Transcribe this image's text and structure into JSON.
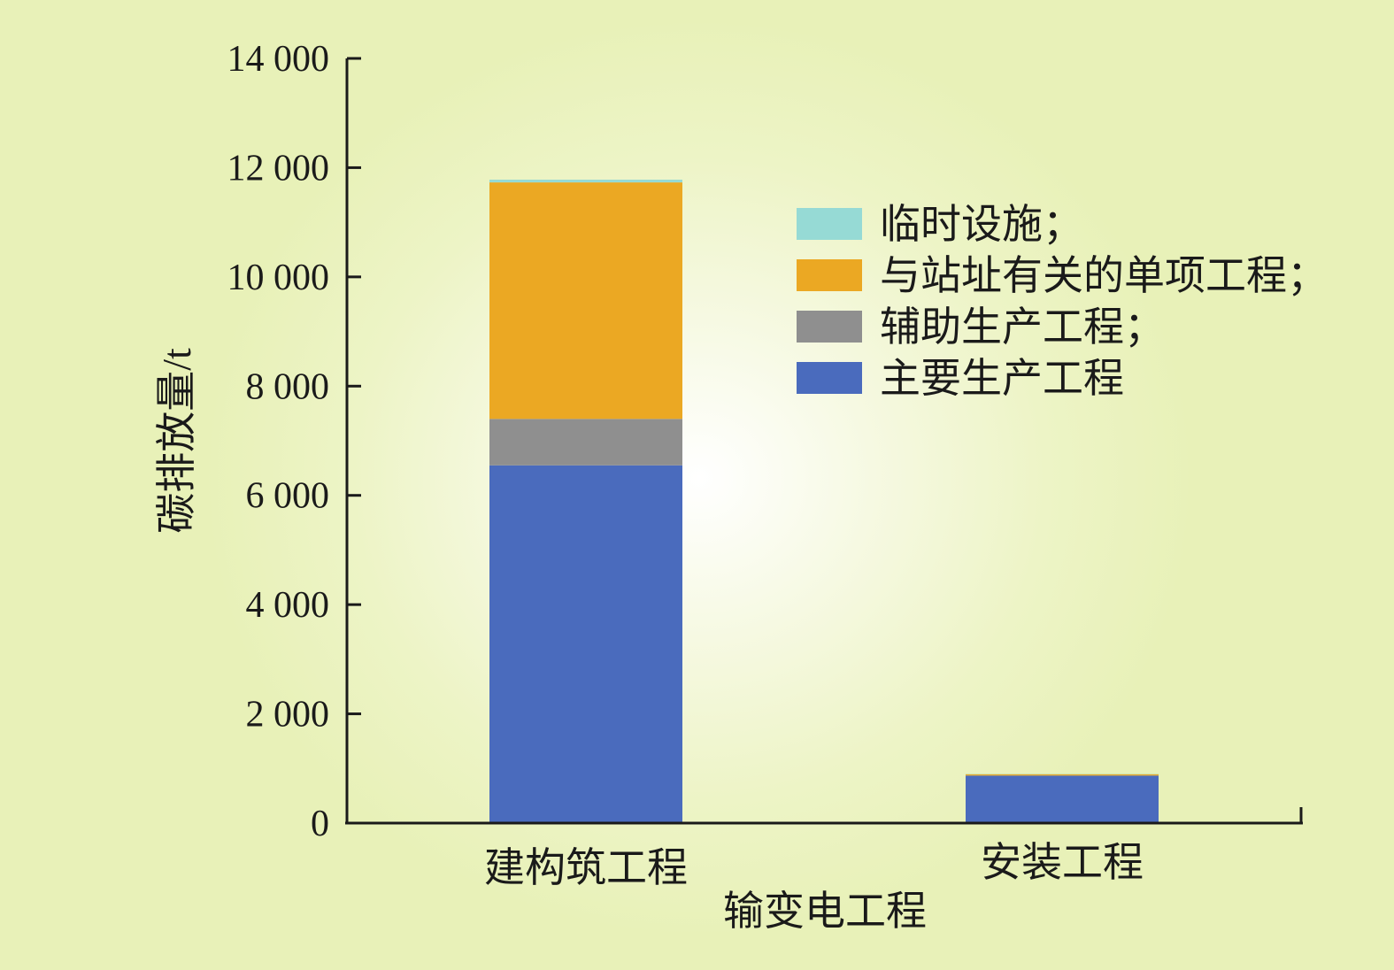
{
  "chart_data": {
    "type": "bar",
    "stacked": true,
    "categories": [
      "建构筑工程",
      "安装工程"
    ],
    "series": [
      {
        "name": "主要生产工程",
        "color": "#4a6bbd",
        "values": [
          6550,
          870
        ]
      },
      {
        "name": "辅助生产工程；",
        "color": "#8f8f8f",
        "values": [
          850,
          0
        ]
      },
      {
        "name": "与站址有关的单项工程；",
        "color": "#eba823",
        "values": [
          4330,
          25
        ]
      },
      {
        "name": "临时设施；",
        "color": "#96dad5",
        "values": [
          50,
          5
        ]
      }
    ],
    "xlabel": "输变电工程",
    "ylabel": "碳排放量/t",
    "ylim": [
      0,
      14000
    ],
    "yticks": [
      0,
      2000,
      4000,
      6000,
      8000,
      10000,
      12000,
      14000
    ],
    "ytick_labels": [
      "0",
      "2 000",
      "4 000",
      "6 000",
      "8 000",
      "10 000",
      "12 000",
      "14 000"
    ],
    "legend_position": "top-right",
    "legend_order": [
      "临时设施；",
      "与站址有关的单项工程；",
      "辅助生产工程；",
      "主要生产工程"
    ],
    "grid": false
  }
}
